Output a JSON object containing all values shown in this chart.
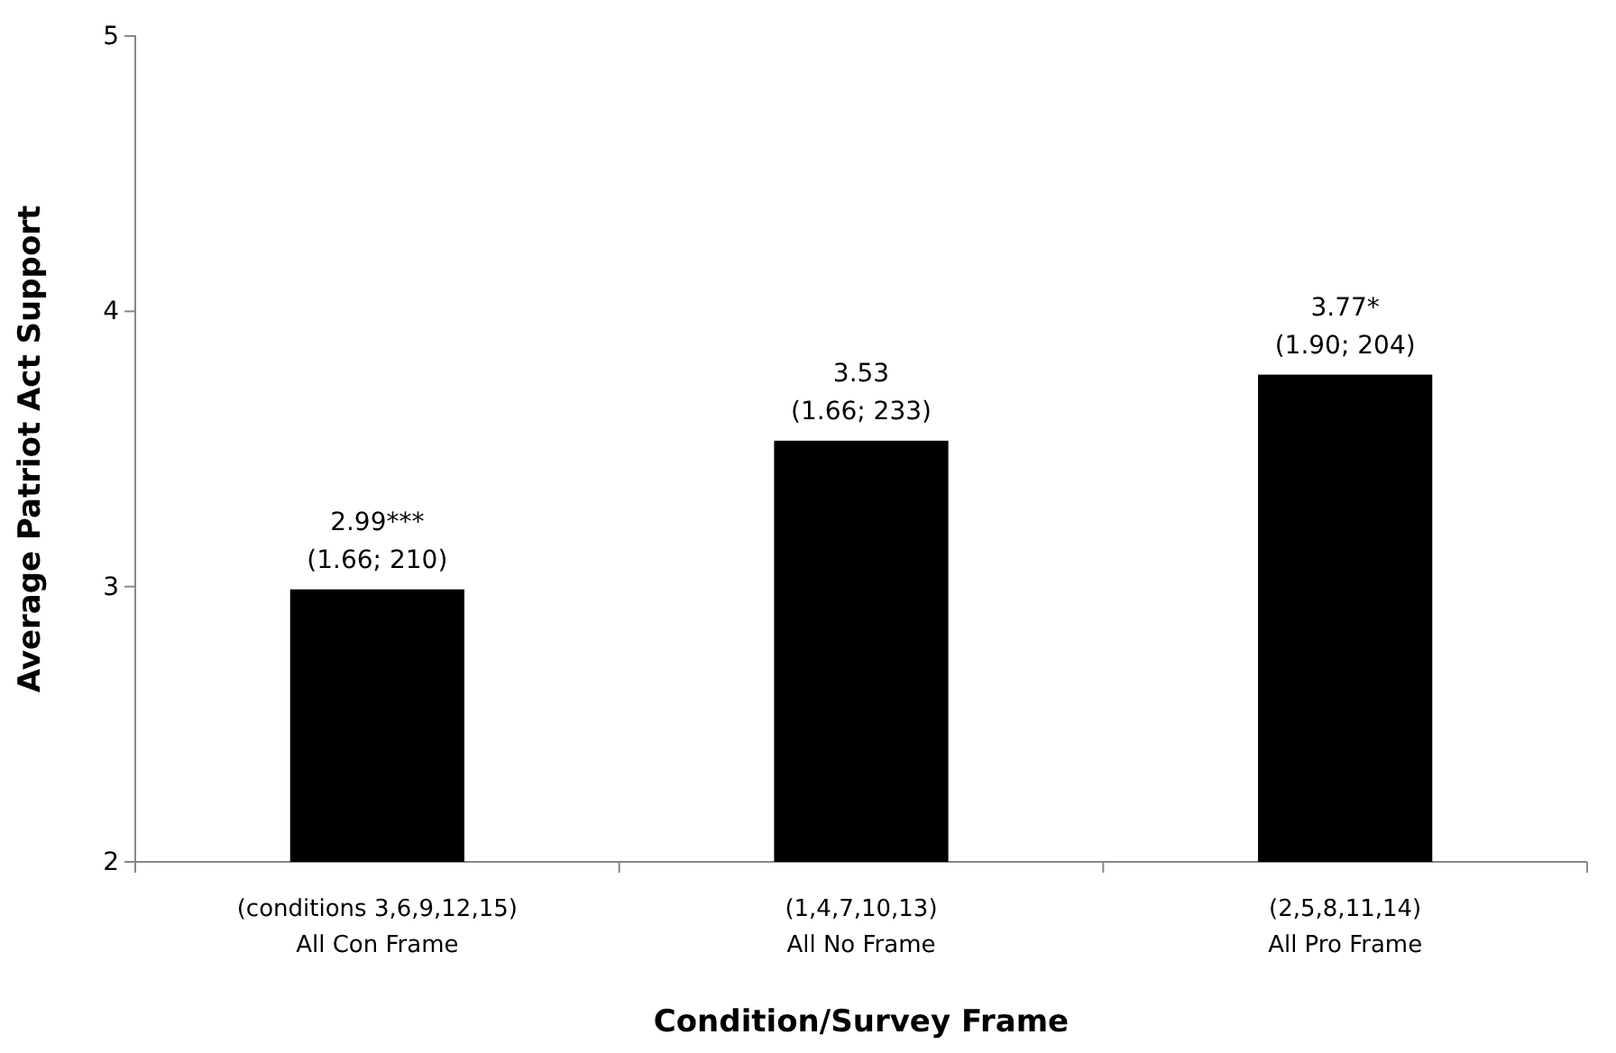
{
  "chart_data": {
    "type": "bar",
    "xlabel": "Condition/Survey Frame",
    "ylabel": "Average Patriot Act Support",
    "categories": [
      "(conditions 3,6,9,12,15)\nAll Con Frame",
      "(1,4,7,10,13)\nAll No Frame",
      "(2,5,8,11,14)\nAll Pro Frame"
    ],
    "values": [
      2.99,
      3.53,
      3.77
    ],
    "value_labels": [
      "2.99***\n(1.66; 210)",
      "3.53\n(1.66; 233)",
      "3.77*\n(1.90; 204)"
    ],
    "color": "#000000",
    "ylim": [
      2,
      5
    ],
    "yticks": [
      2,
      3,
      4,
      5
    ],
    "grid": false
  }
}
